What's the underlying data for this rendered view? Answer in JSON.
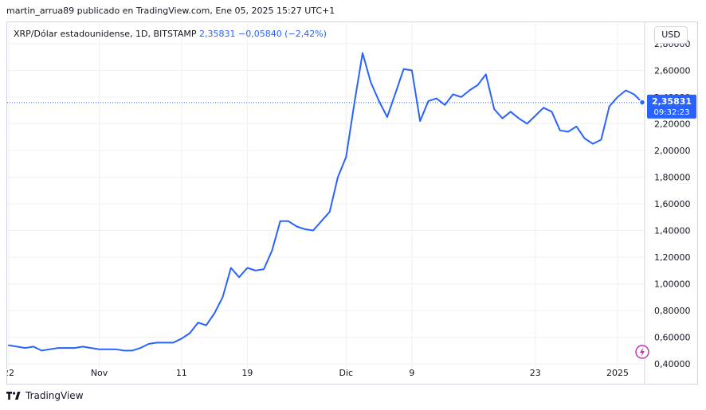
{
  "header": {
    "title": "martin_arrua89 publicado en TradingView.com, Ene 05, 2025 15:27 UTC+1"
  },
  "symbol": {
    "name": "XRP/Dólar estadounidense, 1D, BITSTAMP",
    "last": "2,35831",
    "change": "−0,05840 (−2,42%)"
  },
  "currency": "USD",
  "price_badge": {
    "price": "2,35831",
    "time": "09:32:23"
  },
  "colors": {
    "line": "#2962ff",
    "grid": "#eef0f3",
    "text": "#131722",
    "badge_bg": "#2962ff",
    "border": "#d1d4dc"
  },
  "footer": {
    "brand": "TradingView",
    "logo": "tradingview-logo-icon"
  },
  "chart_data": {
    "type": "line",
    "title": "XRP/Dólar estadounidense, 1D, BITSTAMP",
    "ylim": [
      0.24,
      2.96
    ],
    "grid": "on",
    "x_tick_labels": [
      "22",
      "Nov",
      "11",
      "19",
      "Dic",
      "9",
      "23",
      "2025"
    ],
    "x_tick_index": [
      0,
      11,
      21,
      29,
      41,
      49,
      64,
      74
    ],
    "y_ticks": [
      0.4,
      0.6,
      0.8,
      1.0,
      1.2,
      1.4,
      1.6,
      1.8,
      2.0,
      2.2,
      2.4,
      2.6,
      2.8
    ],
    "y_tick_labels": [
      "0,40000",
      "0,60000",
      "0,80000",
      "1,00000",
      "1,20000",
      "1,40000",
      "1,60000",
      "1,80000",
      "2,00000",
      "2,20000",
      "2,40000",
      "2,60000",
      "2,80000"
    ],
    "last_price": 2.35831,
    "series": [
      {
        "values": [
          0.54,
          0.53,
          0.52,
          0.53,
          0.5,
          0.51,
          0.52,
          0.52,
          0.52,
          0.53,
          0.52,
          0.51,
          0.51,
          0.51,
          0.5,
          0.5,
          0.52,
          0.55,
          0.56,
          0.56,
          0.56,
          0.59,
          0.63,
          0.71,
          0.69,
          0.78,
          0.9,
          1.12,
          1.05,
          1.12,
          1.1,
          1.11,
          1.25,
          1.47,
          1.47,
          1.43,
          1.41,
          1.4,
          1.47,
          1.54,
          1.8,
          1.95,
          2.35,
          2.73,
          2.51,
          2.37,
          2.25,
          2.43,
          2.61,
          2.6,
          2.22,
          2.37,
          2.39,
          2.34,
          2.42,
          2.4,
          2.45,
          2.49,
          2.57,
          2.31,
          2.24,
          2.29,
          2.24,
          2.2,
          2.26,
          2.32,
          2.29,
          2.15,
          2.14,
          2.18,
          2.09,
          2.05,
          2.08,
          2.33,
          2.4,
          2.45,
          2.42,
          2.36
        ]
      }
    ]
  }
}
